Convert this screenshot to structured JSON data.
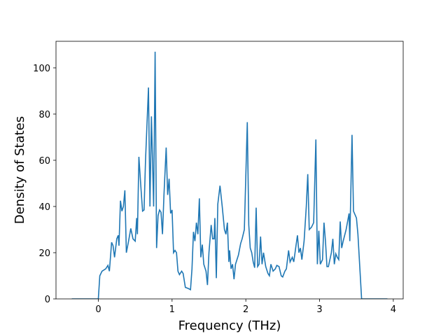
{
  "chart_data": {
    "type": "line",
    "xlabel": "Frequency (THz)",
    "ylabel": "Density of States",
    "color": "#1f77b4",
    "x": [
      -0.36,
      0,
      0.02,
      0.05,
      0.1,
      0.13,
      0.15,
      0.18,
      0.2,
      0.22,
      0.25,
      0.27,
      0.28,
      0.3,
      0.32,
      0.34,
      0.36,
      0.38,
      0.41,
      0.44,
      0.47,
      0.5,
      0.52,
      0.53,
      0.55,
      0.58,
      0.6,
      0.62,
      0.64,
      0.68,
      0.7,
      0.72,
      0.75,
      0.77,
      0.79,
      0.81,
      0.83,
      0.85,
      0.87,
      0.89,
      0.92,
      0.94,
      0.96,
      0.98,
      1.0,
      1.02,
      1.04,
      1.06,
      1.08,
      1.1,
      1.13,
      1.15,
      1.18,
      1.22,
      1.25,
      1.27,
      1.29,
      1.31,
      1.33,
      1.35,
      1.37,
      1.39,
      1.41,
      1.43,
      1.46,
      1.48,
      1.5,
      1.53,
      1.55,
      1.57,
      1.58,
      1.6,
      1.62,
      1.65,
      1.68,
      1.71,
      1.73,
      1.75,
      1.77,
      1.78,
      1.8,
      1.82,
      1.84,
      1.86,
      1.9,
      1.93,
      1.95,
      1.98,
      2.02,
      2.04,
      2.06,
      2.08,
      2.1,
      2.12,
      2.14,
      2.16,
      2.18,
      2.2,
      2.22,
      2.24,
      2.27,
      2.3,
      2.32,
      2.34,
      2.37,
      2.4,
      2.42,
      2.45,
      2.48,
      2.5,
      2.53,
      2.55,
      2.58,
      2.6,
      2.63,
      2.65,
      2.68,
      2.7,
      2.72,
      2.74,
      2.76,
      2.79,
      2.82,
      2.84,
      2.86,
      2.89,
      2.92,
      2.95,
      2.97,
      2.99,
      3.01,
      3.04,
      3.06,
      3.08,
      3.1,
      3.12,
      3.14,
      3.16,
      3.18,
      3.2,
      3.22,
      3.24,
      3.26,
      3.28,
      3.3,
      3.32,
      3.36,
      3.4,
      3.41,
      3.44,
      3.46,
      3.5,
      3.52,
      3.57,
      3.92
    ],
    "values": [
      0,
      0,
      10,
      12,
      13,
      14.5,
      12,
      24.5,
      23,
      18,
      26,
      27.5,
      23,
      42.5,
      38,
      40,
      47,
      20,
      25,
      30.5,
      26,
      25,
      35,
      28,
      61.5,
      47,
      38,
      38.5,
      60,
      91.5,
      40,
      79,
      40,
      107,
      22,
      36,
      38.5,
      37.5,
      28,
      45,
      65.5,
      45,
      52,
      37,
      38.5,
      20,
      21,
      20,
      12,
      10.5,
      12,
      11,
      5,
      4.5,
      4,
      13,
      29,
      25,
      33,
      28,
      43.5,
      18,
      23.5,
      15,
      12,
      6,
      20,
      32,
      26,
      26,
      35,
      9,
      41,
      49,
      40,
      30,
      28,
      33,
      16,
      21,
      13,
      15,
      8.5,
      15,
      19,
      24,
      26,
      30,
      76.5,
      32,
      22,
      20,
      16,
      13.5,
      39.5,
      14,
      15,
      27,
      15,
      20,
      14,
      11,
      10,
      15,
      12,
      13,
      14.5,
      14,
      10,
      9.5,
      12,
      13,
      21,
      16,
      18,
      16,
      23,
      27.5,
      20,
      22,
      17,
      25,
      40,
      54,
      30,
      31,
      33,
      69,
      15,
      29.5,
      15,
      17,
      33,
      25,
      14,
      14,
      17,
      20,
      26,
      15,
      19.5,
      18,
      17,
      33.5,
      22,
      25,
      30,
      37,
      25,
      71,
      38,
      35,
      28,
      0,
      0
    ],
    "xlim": [
      -0.574,
      4.134
    ],
    "xticks": [
      0,
      1,
      2,
      3,
      4
    ],
    "ylim": [
      0,
      111.5
    ],
    "yticks": [
      0,
      20,
      40,
      60,
      80,
      100
    ]
  }
}
